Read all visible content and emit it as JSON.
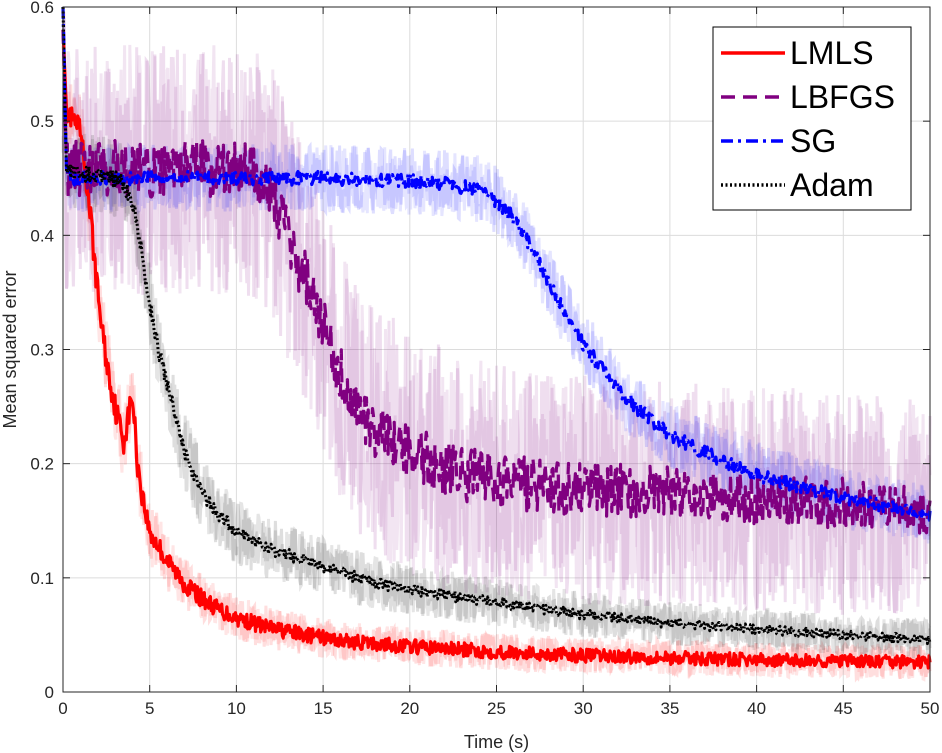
{
  "chart_data": {
    "type": "line",
    "title": "",
    "xlabel": "Time (s)",
    "ylabel": "Mean squared error",
    "xlim": [
      0,
      50
    ],
    "ylim": [
      0,
      0.6
    ],
    "xticks": [
      0,
      5,
      10,
      15,
      20,
      25,
      30,
      35,
      40,
      45,
      50
    ],
    "yticks": [
      0,
      0.1,
      0.2,
      0.3,
      0.4,
      0.5,
      0.6
    ],
    "xtick_labels": [
      "0",
      "5",
      "10",
      "15",
      "20",
      "25",
      "30",
      "35",
      "40",
      "45",
      "50"
    ],
    "ytick_labels": [
      "0",
      "0.1",
      "0.2",
      "0.3",
      "0.4",
      "0.5",
      "0.6"
    ],
    "grid": true,
    "legend_position": "top-right",
    "series": [
      {
        "name": "LMLS",
        "color": "#ff0000",
        "style": "solid",
        "x": [
          0,
          0.2,
          0.5,
          1,
          1.5,
          2,
          2.5,
          3,
          3.5,
          4,
          4.3,
          4.6,
          5,
          6,
          7,
          8,
          9,
          10,
          12,
          14,
          16,
          18,
          20,
          25,
          30,
          35,
          40,
          45,
          50
        ],
        "y": [
          0.58,
          0.51,
          0.5,
          0.49,
          0.43,
          0.35,
          0.29,
          0.25,
          0.22,
          0.26,
          0.2,
          0.17,
          0.14,
          0.115,
          0.095,
          0.082,
          0.072,
          0.065,
          0.056,
          0.05,
          0.045,
          0.042,
          0.04,
          0.035,
          0.032,
          0.03,
          0.028,
          0.027,
          0.026
        ]
      },
      {
        "name": "LBFGS",
        "color": "#800080",
        "style": "dashed",
        "x": [
          0,
          0.2,
          0.5,
          1,
          3,
          5,
          8,
          11,
          12,
          13,
          14,
          15,
          16,
          17,
          18,
          20,
          22,
          25,
          28,
          30,
          35,
          40,
          45,
          50
        ],
        "y": [
          0.58,
          0.46,
          0.455,
          0.46,
          0.46,
          0.455,
          0.46,
          0.455,
          0.44,
          0.4,
          0.36,
          0.32,
          0.28,
          0.25,
          0.23,
          0.21,
          0.195,
          0.185,
          0.18,
          0.178,
          0.175,
          0.17,
          0.165,
          0.16
        ]
      },
      {
        "name": "SG",
        "color": "#0000ff",
        "style": "dashdot",
        "x": [
          0,
          0.2,
          0.5,
          2,
          5,
          10,
          15,
          20,
          22,
          24,
          25,
          26,
          27,
          28,
          29,
          30,
          31,
          32,
          33,
          35,
          37,
          40,
          45,
          50
        ],
        "y": [
          0.6,
          0.455,
          0.45,
          0.45,
          0.45,
          0.45,
          0.45,
          0.448,
          0.445,
          0.44,
          0.43,
          0.415,
          0.39,
          0.36,
          0.33,
          0.305,
          0.285,
          0.265,
          0.25,
          0.225,
          0.21,
          0.19,
          0.17,
          0.155
        ]
      },
      {
        "name": "Adam",
        "color": "#000000",
        "style": "dotted",
        "x": [
          0,
          0.2,
          0.5,
          1,
          2,
          3,
          3.5,
          4,
          4.5,
          5,
          5.5,
          6,
          6.5,
          7,
          8,
          9,
          10,
          12,
          14,
          16,
          18,
          20,
          25,
          30,
          35,
          40,
          45,
          50
        ],
        "y": [
          0.6,
          0.455,
          0.455,
          0.455,
          0.452,
          0.45,
          0.445,
          0.43,
          0.39,
          0.34,
          0.3,
          0.27,
          0.24,
          0.21,
          0.175,
          0.155,
          0.14,
          0.125,
          0.115,
          0.105,
          0.095,
          0.09,
          0.078,
          0.068,
          0.06,
          0.055,
          0.05,
          0.046
        ]
      }
    ]
  }
}
